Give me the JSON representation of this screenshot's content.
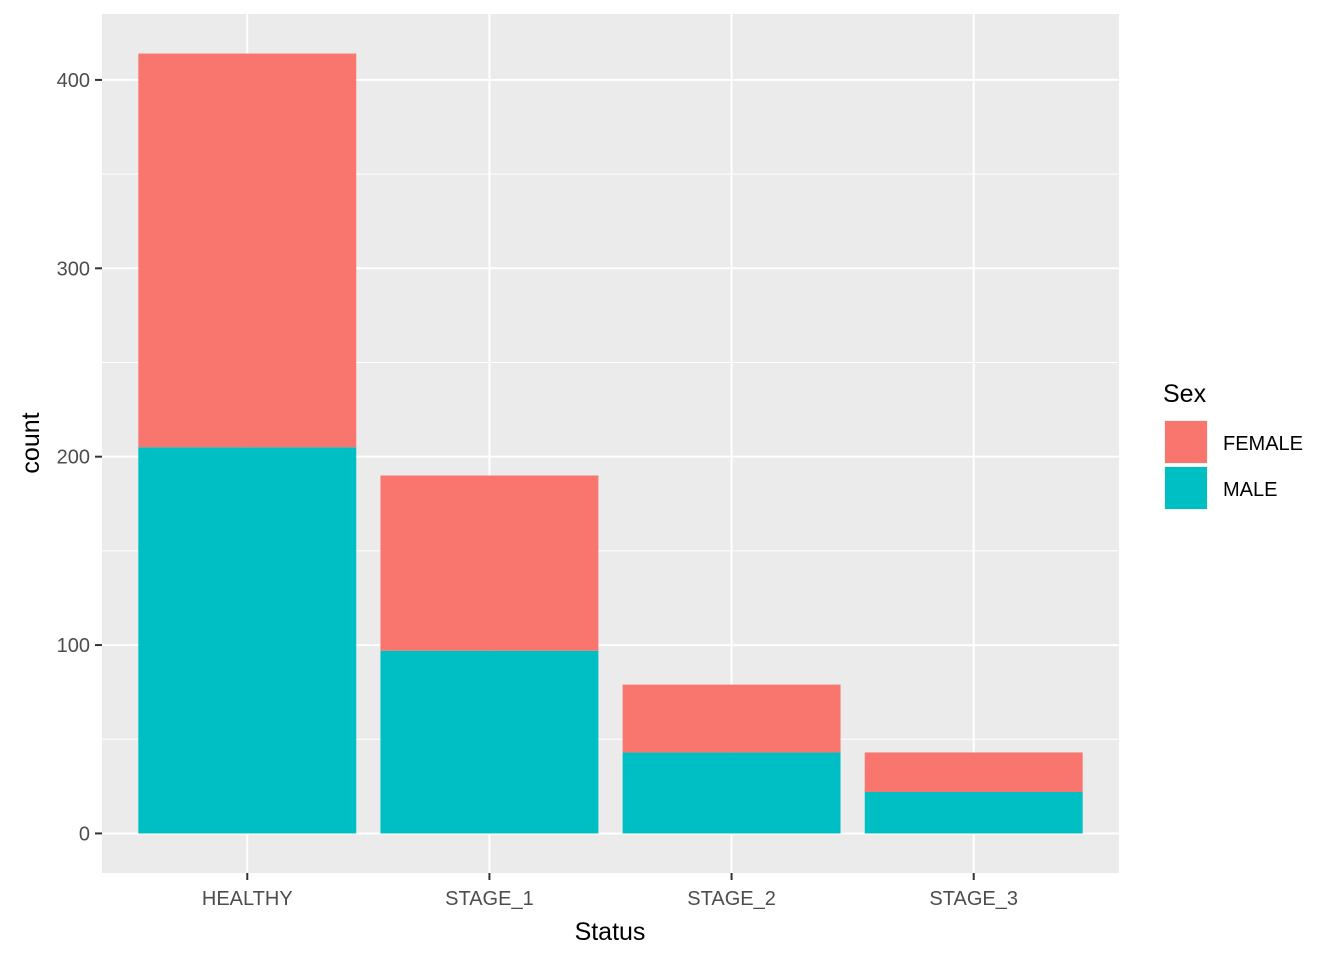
{
  "chart_data": {
    "type": "bar",
    "stacked": true,
    "title": "",
    "xlabel": "Status",
    "ylabel": "count",
    "categories": [
      "HEALTHY",
      "STAGE_1",
      "STAGE_2",
      "STAGE_3"
    ],
    "series": [
      {
        "name": "MALE",
        "color": "#00BFC4",
        "values": [
          205,
          97,
          43,
          22
        ]
      },
      {
        "name": "FEMALE",
        "color": "#F8766D",
        "values": [
          209,
          93,
          36,
          21
        ]
      }
    ],
    "ylim": [
      -21,
      435
    ],
    "yticks": [
      0,
      100,
      200,
      300,
      400
    ],
    "ytick_labels": [
      "0",
      "100",
      "200",
      "300",
      "400"
    ],
    "grid": true,
    "legend": {
      "title": "Sex",
      "position": "right",
      "items": [
        {
          "label": "FEMALE",
          "color": "#F8766D"
        },
        {
          "label": "MALE",
          "color": "#00BFC4"
        }
      ]
    }
  }
}
